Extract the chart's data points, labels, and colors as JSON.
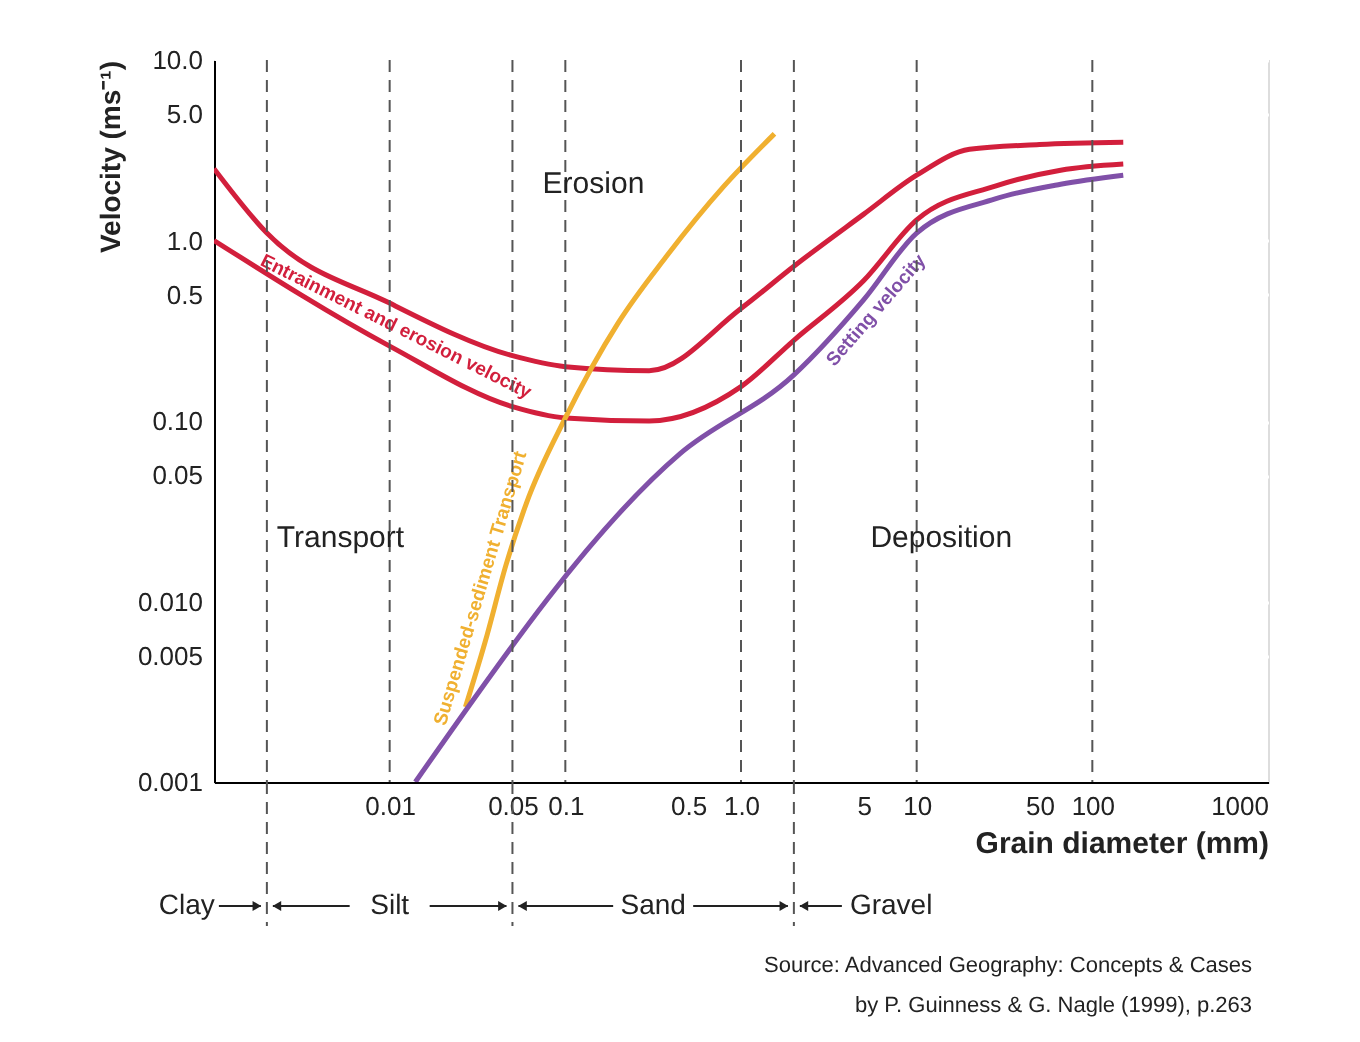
{
  "chart_data": {
    "type": "line",
    "xlabel": "Grain diameter (mm)",
    "ylabel": "Velocity (ms⁻¹)",
    "log": "xy",
    "xlim": [
      0.001,
      1000
    ],
    "ylim": [
      0.001,
      10
    ],
    "xticks": [
      0.01,
      0.05,
      0.1,
      0.5,
      {
        "value": 1,
        "label": "1.0"
      },
      5,
      10,
      50,
      100,
      1000
    ],
    "yticks": [
      {
        "value": 0.001,
        "label": "0.001"
      },
      {
        "value": 0.005,
        "label": "0.005"
      },
      {
        "value": 0.01,
        "label": "0.010"
      },
      {
        "value": 0.05,
        "label": "0.05"
      },
      {
        "value": 0.1,
        "label": "0.10"
      },
      {
        "value": 0.5,
        "label": "0.5"
      },
      {
        "value": 1,
        "label": "1.0"
      },
      {
        "value": 5,
        "label": "5.0"
      },
      {
        "value": 10,
        "label": "10.0"
      }
    ],
    "grid": "y",
    "marker": "none",
    "line_style": "solid",
    "series": [
      {
        "name": "Entrainment and erosion velocity",
        "color": "#d21f3c",
        "x": [
          0.001,
          0.002,
          0.01,
          0.05,
          0.1,
          0.3,
          1,
          2,
          5,
          10,
          20,
          50,
          150
        ],
        "values": [
          2.5,
          1.1,
          0.45,
          0.23,
          0.2,
          0.19,
          0.42,
          0.72,
          1.4,
          2.3,
          3.2,
          3.4,
          3.5
        ]
      },
      {
        "color": "#d21f3c",
        "x": [
          0.001,
          0.01,
          0.05,
          0.1,
          0.3,
          1,
          2,
          5,
          10,
          28,
          66,
          150
        ],
        "values": [
          1.0,
          0.26,
          0.12,
          0.104,
          0.1,
          0.155,
          0.28,
          0.6,
          1.3,
          2.0,
          2.45,
          2.65
        ]
      },
      {
        "name": "Suspended-sediment Transport",
        "color": "#f0b030",
        "x": [
          0.027,
          0.035,
          0.046,
          0.06,
          0.1,
          0.2,
          0.37,
          0.8,
          1.55
        ],
        "values": [
          0.0026,
          0.006,
          0.016,
          0.035,
          0.104,
          0.35,
          0.8,
          2.0,
          3.9
        ]
      },
      {
        "name": "Setting velocity",
        "color": "#8050a8",
        "x": [
          0.014,
          0.45,
          2,
          5,
          10,
          28,
          66,
          150
        ],
        "values": [
          0.001,
          0.066,
          0.18,
          0.47,
          1.1,
          1.7,
          2.05,
          2.3
        ]
      }
    ],
    "ref_lines": [
      {
        "axis": "x",
        "value": 0.01,
        "color": "#555555",
        "line_style": "dashed"
      },
      {
        "axis": "x",
        "value": 0.1,
        "color": "#555555",
        "line_style": "dashed"
      },
      {
        "axis": "x",
        "value": 1,
        "color": "#555555",
        "line_style": "dashed"
      },
      {
        "axis": "x",
        "value": 10,
        "color": "#555555",
        "line_style": "dashed"
      },
      {
        "axis": "x",
        "value": 100,
        "color": "#555555",
        "line_style": "dashed"
      },
      {
        "axis": "x",
        "value": 0.002,
        "color": "#555555",
        "line_style": "dashed"
      },
      {
        "axis": "x",
        "value": 0.05,
        "color": "#555555",
        "line_style": "dashed"
      },
      {
        "axis": "x",
        "value": 2,
        "color": "#555555",
        "line_style": "dashed"
      }
    ],
    "annotations": [
      "Erosion",
      "Transport",
      "Deposition",
      "Clay",
      "Silt",
      "Sand",
      "Gravel",
      "Source: Advanced Geography: Concepts & Cases",
      "by P. Guinness & G. Nagle (1999), p.263"
    ]
  }
}
